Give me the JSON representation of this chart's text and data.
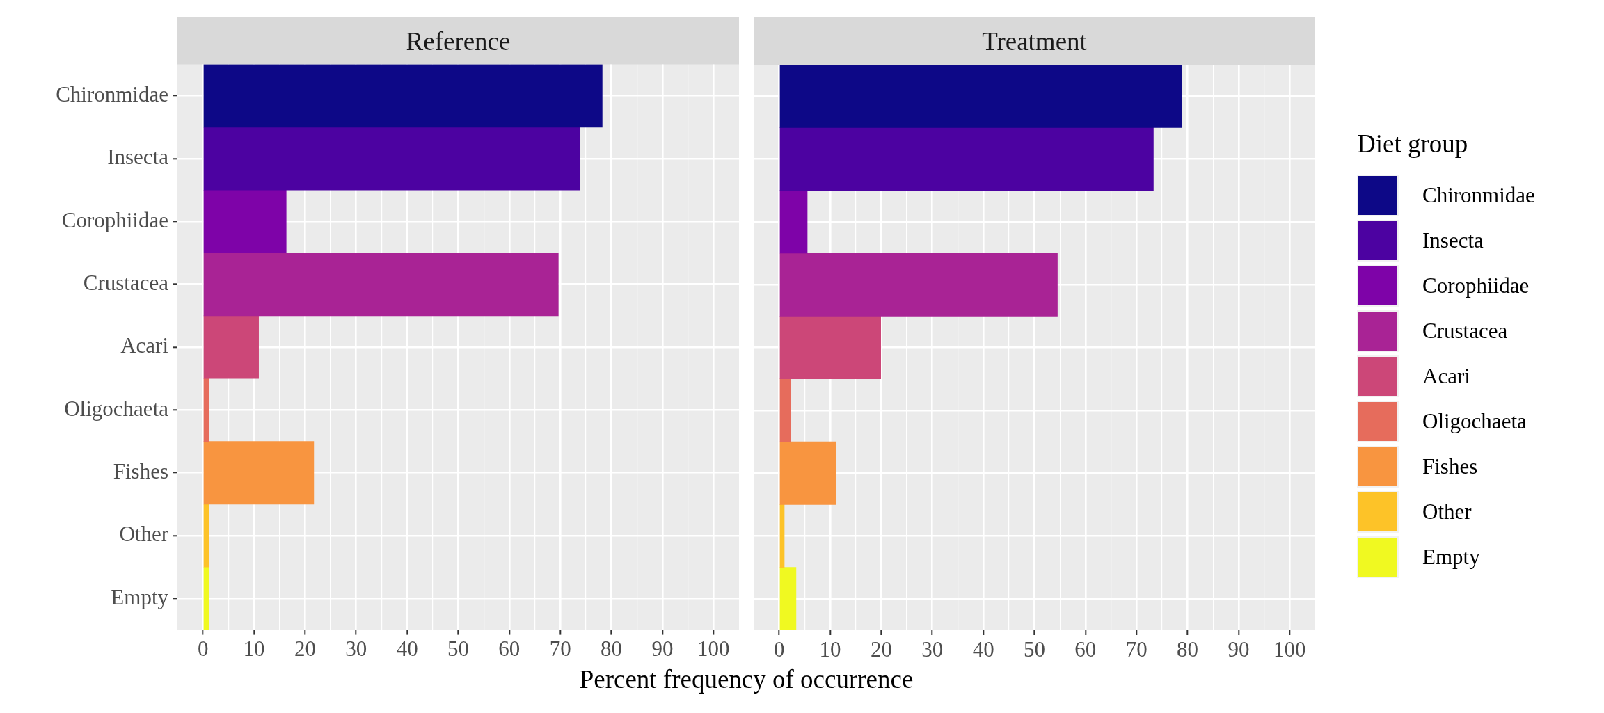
{
  "chart_data": [
    {
      "type": "bar",
      "orientation": "horizontal",
      "stacked": true,
      "title": "Reference",
      "xlabel": "Percent frequency of occurrence",
      "categories": [
        "Chironmidae",
        "Insecta",
        "Corophiidae",
        "Crustacea",
        "Acari",
        "Oligochaeta",
        "Fishes",
        "Other",
        "Empty"
      ],
      "series": [
        {
          "color": "#0d0887",
          "values": [
            78.2,
            null,
            null,
            null,
            null,
            null,
            null,
            null,
            null
          ]
        },
        {
          "color": "#4c02a1",
          "values": [
            null,
            73.8,
            null,
            null,
            null,
            null,
            null,
            null,
            null
          ]
        },
        {
          "color": "#7e03a8",
          "values": [
            null,
            null,
            16.3,
            null,
            null,
            null,
            null,
            null,
            null
          ]
        },
        {
          "color": "#a92395",
          "values": [
            null,
            null,
            null,
            69.6,
            null,
            null,
            null,
            null,
            null
          ]
        },
        {
          "color": "#cc4778",
          "values": [
            null,
            null,
            null,
            null,
            10.9,
            null,
            null,
            null,
            null
          ]
        },
        {
          "color": "#e66c5c",
          "values": [
            null,
            null,
            null,
            null,
            null,
            1.1,
            null,
            null,
            null
          ]
        },
        {
          "color": "#f89540",
          "values": [
            null,
            null,
            null,
            null,
            null,
            null,
            21.7,
            null,
            null
          ]
        },
        {
          "color": "#fdc328",
          "values": [
            null,
            null,
            null,
            null,
            null,
            null,
            null,
            1.1,
            null
          ]
        },
        {
          "color": "#f0f921",
          "values": [
            null,
            null,
            null,
            null,
            null,
            null,
            null,
            null,
            1.1
          ]
        }
      ],
      "xlim": [
        -5,
        105
      ],
      "xticks": [
        0,
        {
          "value": 5,
          "label": null
        },
        10,
        {
          "value": 15,
          "label": null
        },
        20,
        {
          "value": 25,
          "label": null
        },
        30,
        {
          "value": 35,
          "label": null
        },
        40,
        {
          "value": 45,
          "label": null
        },
        50,
        {
          "value": 55,
          "label": null
        },
        60,
        {
          "value": 65,
          "label": null
        },
        70,
        {
          "value": 75,
          "label": null
        },
        80,
        {
          "value": 85,
          "label": null
        },
        90,
        {
          "value": 95,
          "label": null
        },
        100
      ],
      "grid": true
    },
    {
      "type": "bar",
      "orientation": "horizontal",
      "stacked": true,
      "title": "Treatment",
      "legend": "right",
      "legend_title": "Diet group",
      "tick_labels": "x",
      "categories": [
        null,
        null,
        null,
        null,
        null,
        null,
        null,
        null,
        null
      ],
      "series": [
        {
          "name": "Chironmidae",
          "color": "#0d0887",
          "values": [
            78.8,
            null,
            null,
            null,
            null,
            null,
            null,
            null,
            null
          ]
        },
        {
          "name": "Insecta",
          "color": "#4c02a1",
          "values": [
            null,
            73.3,
            null,
            null,
            null,
            null,
            null,
            null,
            null
          ]
        },
        {
          "name": "Corophiidae",
          "color": "#7e03a8",
          "values": [
            null,
            null,
            5.5,
            null,
            null,
            null,
            null,
            null,
            null
          ]
        },
        {
          "name": "Crustacea",
          "color": "#a92395",
          "values": [
            null,
            null,
            null,
            54.5,
            null,
            null,
            null,
            null,
            null
          ]
        },
        {
          "name": "Acari",
          "color": "#cc4778",
          "values": [
            null,
            null,
            null,
            null,
            19.9,
            null,
            null,
            null,
            null
          ]
        },
        {
          "name": "Oligochaeta",
          "color": "#e66c5c",
          "values": [
            null,
            null,
            null,
            null,
            null,
            2.2,
            null,
            null,
            null
          ]
        },
        {
          "name": "Fishes",
          "color": "#f89540",
          "values": [
            null,
            null,
            null,
            null,
            null,
            null,
            11.1,
            null,
            null
          ]
        },
        {
          "name": "Other",
          "color": "#fdc328",
          "values": [
            null,
            null,
            null,
            null,
            null,
            null,
            null,
            1.0,
            null
          ]
        },
        {
          "name": "Empty",
          "color": "#f0f921",
          "values": [
            null,
            null,
            null,
            null,
            null,
            null,
            null,
            null,
            3.3
          ]
        }
      ],
      "xlim": [
        -5,
        105
      ],
      "xticks": [
        0,
        {
          "value": 5,
          "label": null
        },
        10,
        {
          "value": 15,
          "label": null
        },
        20,
        {
          "value": 25,
          "label": null
        },
        30,
        {
          "value": 35,
          "label": null
        },
        40,
        {
          "value": 45,
          "label": null
        },
        50,
        {
          "value": 55,
          "label": null
        },
        60,
        {
          "value": 65,
          "label": null
        },
        70,
        {
          "value": 75,
          "label": null
        },
        80,
        {
          "value": 85,
          "label": null
        },
        90,
        {
          "value": 95,
          "label": null
        },
        100
      ],
      "grid": true
    }
  ]
}
